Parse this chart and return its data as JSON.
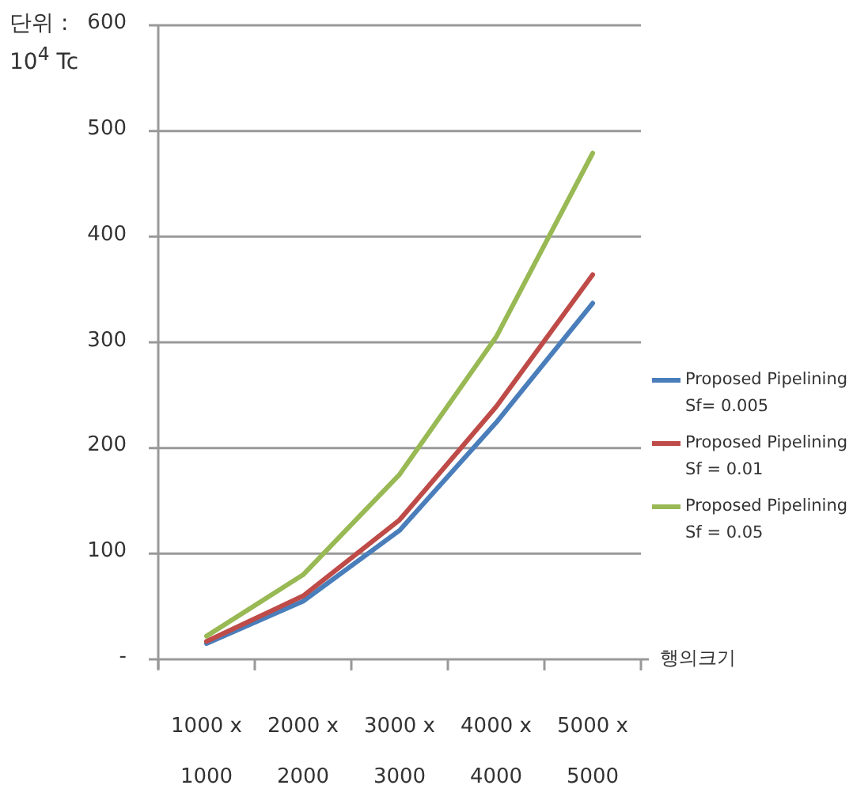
{
  "chart_data": {
    "type": "line",
    "ylabel": "단위 : 10$^{4}$ Tc",
    "xlabel": "행의크기",
    "categories": [
      "1000 x 1000",
      "2000 x 2000",
      "3000 x 3000",
      "4000 x 4000",
      "5000 x 5000"
    ],
    "series": [
      {
        "name": "Proposed Pipelining Sf= 0.005",
        "color": "#4a7ebb",
        "values": [
          15,
          55,
          122,
          224,
          337
        ]
      },
      {
        "name": "Proposed Pipelining Sf = 0.01",
        "color": "#be4b48",
        "values": [
          17,
          60,
          132,
          239,
          364
        ]
      },
      {
        "name": "Proposed Pipelining Sf = 0.05",
        "color": "#98b954",
        "values": [
          22,
          80,
          175,
          305,
          479
        ]
      }
    ],
    "ylim": [
      0,
      600
    ],
    "yticks": [
      {
        "value": 0,
        "label": "-"
      },
      100,
      200,
      300,
      400,
      500,
      600
    ],
    "grid": "y",
    "legend": "right",
    "marker": "none",
    "line_style": "solid"
  }
}
